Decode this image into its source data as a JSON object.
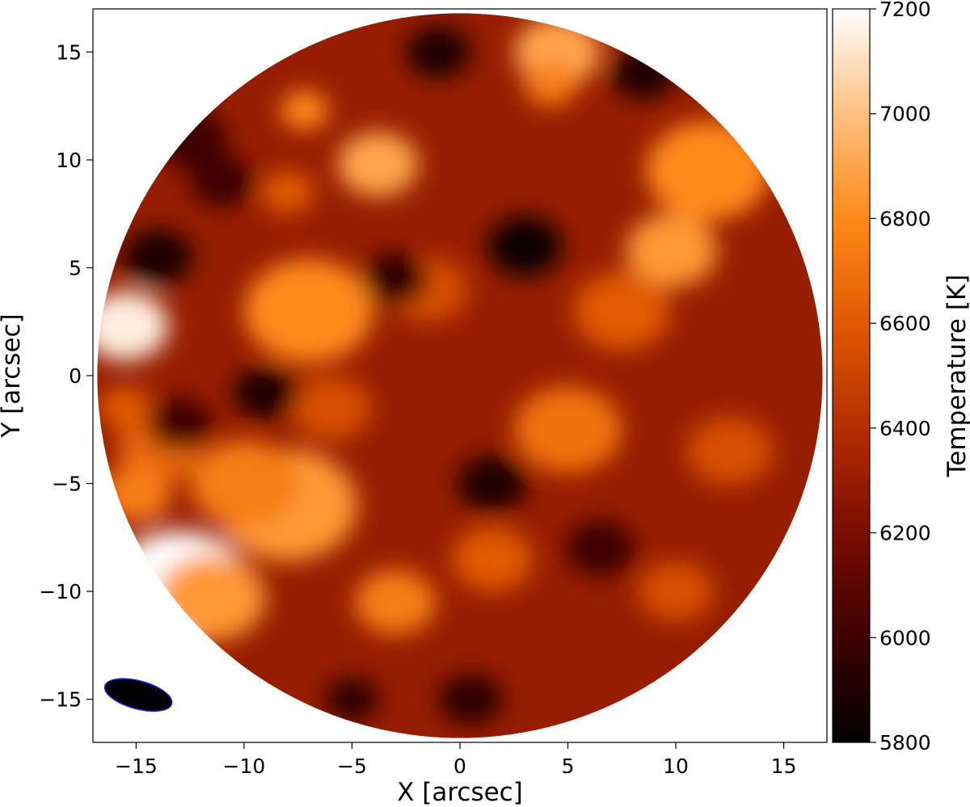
{
  "chart_data": {
    "type": "heatmap",
    "title": "",
    "xlabel": "X [arcsec]",
    "ylabel": "Y [arcsec]",
    "xlim": [
      -17,
      17
    ],
    "ylim": [
      -17,
      17
    ],
    "x_ticks": [
      -15,
      -10,
      -5,
      0,
      5,
      10,
      15
    ],
    "y_ticks": [
      -15,
      -10,
      -5,
      0,
      5,
      10,
      15
    ],
    "x_tick_labels": [
      "−15",
      "−10",
      "−5",
      "0",
      "5",
      "10",
      "15"
    ],
    "y_tick_labels": [
      "−15",
      "−10",
      "−5",
      "0",
      "5",
      "10",
      "15"
    ],
    "grid": false,
    "field_of_view": {
      "shape": "circle",
      "center": [
        0,
        0
      ],
      "radius": 16.8
    },
    "colorbar": {
      "label": "Temperature [K]",
      "min": 5800,
      "max": 7200,
      "ticks": [
        5800,
        6000,
        6200,
        6400,
        6600,
        6800,
        7000,
        7200
      ],
      "tick_labels": [
        "5800",
        "6000",
        "6200",
        "6400",
        "6600",
        "6800",
        "7000",
        "7200"
      ],
      "colormap": "gist_heat",
      "stops": [
        "#000000",
        "#3c0000",
        "#7a0c00",
        "#b42e00",
        "#e05a00",
        "#ff8a1a",
        "#ffc080",
        "#ffffff"
      ]
    },
    "beam": {
      "center": [
        -14.9,
        -14.8
      ],
      "major_axis": 3.2,
      "minor_axis": 1.3,
      "angle_deg": -15,
      "fill": "#000000",
      "edge": "#2222dd"
    },
    "features": [
      {
        "x": -15.5,
        "y": 2.3,
        "value": 7150,
        "size": 1.6
      },
      {
        "x": -13.0,
        "y": -9.8,
        "value": 7200,
        "size": 2.6
      },
      {
        "x": -11.5,
        "y": -10.3,
        "value": 6850,
        "size": 2.0
      },
      {
        "x": -8.0,
        "y": -6.0,
        "value": 6850,
        "size": 2.6
      },
      {
        "x": -10.0,
        "y": -5.0,
        "value": 6750,
        "size": 2.0
      },
      {
        "x": -14.0,
        "y": -3.5,
        "value": 6650,
        "size": 1.5
      },
      {
        "x": -15.0,
        "y": -5.5,
        "value": 6750,
        "size": 1.3
      },
      {
        "x": -15.5,
        "y": -1.5,
        "value": 6600,
        "size": 1.0
      },
      {
        "x": -7.0,
        "y": 3.0,
        "value": 6800,
        "size": 2.4
      },
      {
        "x": -3.8,
        "y": 9.8,
        "value": 6900,
        "size": 1.5
      },
      {
        "x": -7.2,
        "y": 12.3,
        "value": 6800,
        "size": 0.9
      },
      {
        "x": -8.0,
        "y": 8.5,
        "value": 6600,
        "size": 1.0
      },
      {
        "x": 4.5,
        "y": 15.0,
        "value": 6900,
        "size": 1.6
      },
      {
        "x": 4.2,
        "y": 13.5,
        "value": 6750,
        "size": 1.0
      },
      {
        "x": 11.5,
        "y": 9.5,
        "value": 6800,
        "size": 2.3
      },
      {
        "x": 9.8,
        "y": 5.8,
        "value": 6850,
        "size": 1.7
      },
      {
        "x": 5.0,
        "y": -2.5,
        "value": 6700,
        "size": 2.0
      },
      {
        "x": 7.5,
        "y": 3.0,
        "value": 6600,
        "size": 1.8
      },
      {
        "x": -3.0,
        "y": -10.5,
        "value": 6750,
        "size": 1.5
      },
      {
        "x": 1.5,
        "y": -8.5,
        "value": 6600,
        "size": 1.5
      },
      {
        "x": 10.0,
        "y": -10.0,
        "value": 6550,
        "size": 1.4
      },
      {
        "x": -1.5,
        "y": 4.0,
        "value": 6550,
        "size": 1.5
      },
      {
        "x": 12.5,
        "y": -3.5,
        "value": 6550,
        "size": 1.6
      },
      {
        "x": -6.0,
        "y": -1.5,
        "value": 6550,
        "size": 1.5
      },
      {
        "x": 3.0,
        "y": 6.0,
        "value": 5850,
        "size": 1.4
      },
      {
        "x": -1.0,
        "y": 15.0,
        "value": 5900,
        "size": 1.2
      },
      {
        "x": 8.5,
        "y": 14.0,
        "value": 5900,
        "size": 1.2
      },
      {
        "x": -9.0,
        "y": -0.8,
        "value": 5900,
        "size": 1.2
      },
      {
        "x": -14.0,
        "y": 5.5,
        "value": 5900,
        "size": 1.3
      },
      {
        "x": -12.5,
        "y": 11.0,
        "value": 6000,
        "size": 1.4
      },
      {
        "x": -11.0,
        "y": 9.0,
        "value": 6000,
        "size": 1.2
      },
      {
        "x": 1.5,
        "y": -5.0,
        "value": 5900,
        "size": 1.3
      },
      {
        "x": 0.5,
        "y": -15.0,
        "value": 5950,
        "size": 1.2
      },
      {
        "x": -5.0,
        "y": -15.0,
        "value": 5950,
        "size": 1.0
      },
      {
        "x": -3.0,
        "y": 4.5,
        "value": 5950,
        "size": 1.2
      },
      {
        "x": 6.5,
        "y": -8.0,
        "value": 6000,
        "size": 1.3
      },
      {
        "x": -13.0,
        "y": -2.2,
        "value": 6000,
        "size": 1.2
      }
    ]
  }
}
